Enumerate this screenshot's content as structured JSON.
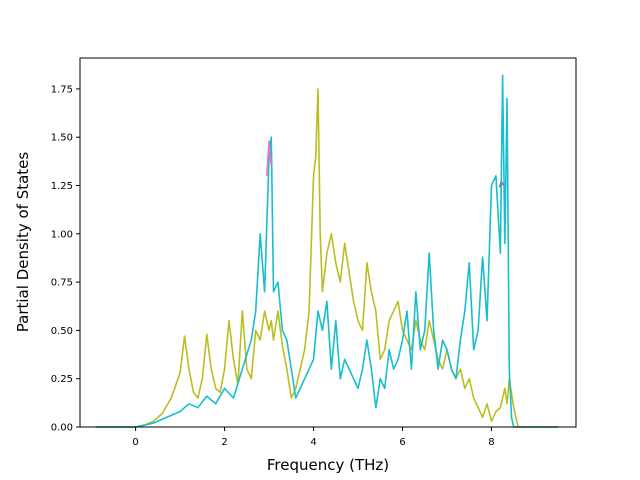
{
  "chart_data": {
    "type": "line",
    "title": "",
    "xlabel": "Frequency (THz)",
    "ylabel": "Partial Density of States",
    "xlim": [
      -1.25,
      9.9
    ],
    "ylim": [
      0.0,
      1.91
    ],
    "xticks": [
      0,
      2,
      4,
      6,
      8
    ],
    "xtick_labels": [
      "0",
      "2",
      "4",
      "6",
      "8"
    ],
    "yticks": [
      0.0,
      0.25,
      0.5,
      0.75,
      1.0,
      1.25,
      1.5,
      1.75
    ],
    "ytick_labels": [
      "0.00",
      "0.25",
      "0.50",
      "0.75",
      "1.00",
      "1.25",
      "1.50",
      "1.75"
    ],
    "grid": false,
    "legend": "none",
    "series": [
      {
        "color": "#bcbd22",
        "x": [
          -0.9,
          0.0,
          0.2,
          0.4,
          0.6,
          0.8,
          1.0,
          1.1,
          1.2,
          1.3,
          1.4,
          1.5,
          1.6,
          1.7,
          1.8,
          1.9,
          2.0,
          2.1,
          2.2,
          2.3,
          2.4,
          2.5,
          2.6,
          2.7,
          2.8,
          2.9,
          3.0,
          3.05,
          3.1,
          3.2,
          3.3,
          3.4,
          3.5,
          3.6,
          3.7,
          3.8,
          3.9,
          4.0,
          4.05,
          4.1,
          4.15,
          4.2,
          4.3,
          4.4,
          4.5,
          4.6,
          4.7,
          4.8,
          4.9,
          5.0,
          5.1,
          5.2,
          5.3,
          5.4,
          5.5,
          5.6,
          5.7,
          5.8,
          5.9,
          6.0,
          6.1,
          6.2,
          6.3,
          6.4,
          6.5,
          6.6,
          6.7,
          6.8,
          6.9,
          7.0,
          7.1,
          7.2,
          7.3,
          7.4,
          7.5,
          7.6,
          7.7,
          7.8,
          7.9,
          8.0,
          8.1,
          8.2,
          8.3,
          8.35,
          8.4,
          8.5,
          8.55,
          8.6,
          9.5
        ],
        "y": [
          0.0,
          0.0,
          0.01,
          0.03,
          0.07,
          0.15,
          0.28,
          0.47,
          0.3,
          0.18,
          0.15,
          0.25,
          0.48,
          0.3,
          0.2,
          0.18,
          0.3,
          0.55,
          0.35,
          0.22,
          0.6,
          0.3,
          0.25,
          0.5,
          0.45,
          0.6,
          0.5,
          0.55,
          0.45,
          0.6,
          0.42,
          0.3,
          0.15,
          0.2,
          0.3,
          0.4,
          0.6,
          1.3,
          1.4,
          1.75,
          1.0,
          0.7,
          0.9,
          1.0,
          0.85,
          0.75,
          0.95,
          0.8,
          0.65,
          0.55,
          0.5,
          0.85,
          0.7,
          0.6,
          0.35,
          0.4,
          0.55,
          0.6,
          0.65,
          0.5,
          0.45,
          0.4,
          0.55,
          0.45,
          0.4,
          0.55,
          0.45,
          0.35,
          0.3,
          0.4,
          0.3,
          0.25,
          0.3,
          0.2,
          0.25,
          0.15,
          0.1,
          0.05,
          0.12,
          0.03,
          0.08,
          0.1,
          0.2,
          0.12,
          0.25,
          0.1,
          0.05,
          0.0,
          0.0
        ]
      },
      {
        "color": "#17becf",
        "x": [
          -0.9,
          0.0,
          0.2,
          0.4,
          0.6,
          0.8,
          1.0,
          1.2,
          1.4,
          1.6,
          1.8,
          2.0,
          2.2,
          2.4,
          2.6,
          2.7,
          2.8,
          2.9,
          3.0,
          3.05,
          3.1,
          3.2,
          3.3,
          3.4,
          3.5,
          3.6,
          3.7,
          3.8,
          3.9,
          4.0,
          4.1,
          4.2,
          4.3,
          4.4,
          4.5,
          4.6,
          4.7,
          4.8,
          4.9,
          5.0,
          5.1,
          5.2,
          5.3,
          5.4,
          5.5,
          5.6,
          5.7,
          5.8,
          5.9,
          6.0,
          6.1,
          6.2,
          6.3,
          6.4,
          6.5,
          6.6,
          6.7,
          6.8,
          6.9,
          7.0,
          7.1,
          7.2,
          7.3,
          7.4,
          7.5,
          7.6,
          7.7,
          7.8,
          7.9,
          8.0,
          8.1,
          8.2,
          8.25,
          8.3,
          8.35,
          8.4,
          8.45,
          8.5,
          8.55,
          8.6,
          9.5
        ],
        "y": [
          0.0,
          0.0,
          0.01,
          0.02,
          0.04,
          0.06,
          0.08,
          0.12,
          0.1,
          0.16,
          0.12,
          0.2,
          0.15,
          0.3,
          0.45,
          0.6,
          1.0,
          0.7,
          1.4,
          1.5,
          0.7,
          0.75,
          0.5,
          0.45,
          0.3,
          0.15,
          0.2,
          0.25,
          0.3,
          0.35,
          0.6,
          0.5,
          0.65,
          0.3,
          0.55,
          0.25,
          0.35,
          0.3,
          0.25,
          0.2,
          0.3,
          0.45,
          0.3,
          0.1,
          0.25,
          0.2,
          0.4,
          0.3,
          0.35,
          0.45,
          0.6,
          0.3,
          0.7,
          0.4,
          0.5,
          0.9,
          0.5,
          0.3,
          0.45,
          0.4,
          0.3,
          0.25,
          0.45,
          0.6,
          0.85,
          0.4,
          0.5,
          0.88,
          0.55,
          1.25,
          1.3,
          0.9,
          1.82,
          0.95,
          1.7,
          0.3,
          0.05,
          0.0,
          0.0,
          0.0,
          0.0
        ]
      },
      {
        "color": "#e377c2",
        "x": [
          2.95,
          3.0,
          3.05
        ],
        "y": [
          1.3,
          1.48,
          1.35
        ]
      },
      {
        "color": "#9467bd",
        "x": [
          8.18,
          8.22,
          8.27
        ],
        "y": [
          1.24,
          1.27,
          1.25
        ]
      }
    ]
  }
}
